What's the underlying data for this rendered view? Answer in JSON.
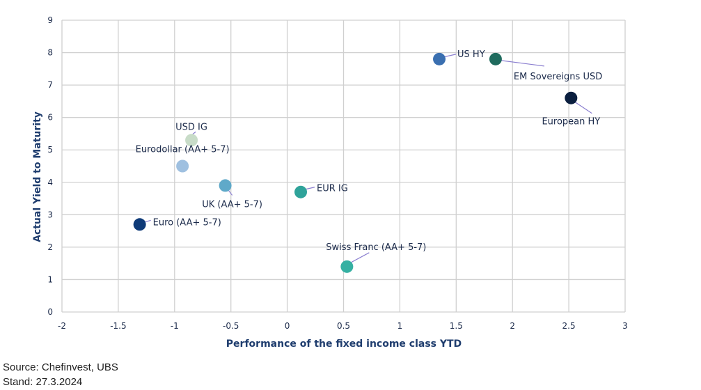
{
  "chart_data": {
    "type": "scatter",
    "xlabel": "Performance of the fixed income class YTD",
    "ylabel": "Actual  Yield to Maturity",
    "xlim": [
      -2,
      3
    ],
    "ylim": [
      0,
      9
    ],
    "xticks": [
      "-2",
      "-1.5",
      "-1",
      "-0.5",
      "0",
      "0.5",
      "1",
      "1.5",
      "2",
      "2.5",
      "3"
    ],
    "yticks": [
      "0",
      "1",
      "2",
      "3",
      "4",
      "5",
      "6",
      "7",
      "8",
      "9"
    ],
    "grid": true,
    "points": [
      {
        "name": "US HY",
        "x": 1.35,
        "y": 7.8,
        "color": "#3a6fb0"
      },
      {
        "name": "EM Sovereigns USD",
        "x": 1.85,
        "y": 7.8,
        "color": "#1f6b5e"
      },
      {
        "name": "European HY",
        "x": 2.52,
        "y": 6.6,
        "color": "#0b1f3f"
      },
      {
        "name": "USD IG",
        "x": -0.85,
        "y": 5.3,
        "color": "#c8dcc8"
      },
      {
        "name": "Eurodollar (AA+ 5-7)",
        "x": -0.93,
        "y": 4.5,
        "color": "#9fc0e0"
      },
      {
        "name": "UK (AA+ 5-7)",
        "x": -0.55,
        "y": 3.9,
        "color": "#5fa9c9"
      },
      {
        "name": "EUR IG",
        "x": 0.12,
        "y": 3.7,
        "color": "#2fa39a"
      },
      {
        "name": "Euro (AA+ 5-7)",
        "x": -1.31,
        "y": 2.7,
        "color": "#0e3a78"
      },
      {
        "name": "Swiss Franc (AA+ 5-7)",
        "x": 0.53,
        "y": 1.4,
        "color": "#35b0a2"
      }
    ]
  },
  "colors": {
    "grid": "#d0d0d0",
    "leader": "#8b7fd0"
  },
  "footer": {
    "source": "Source: Chefinvest, UBS",
    "date": "Stand: 27.3.2024"
  }
}
